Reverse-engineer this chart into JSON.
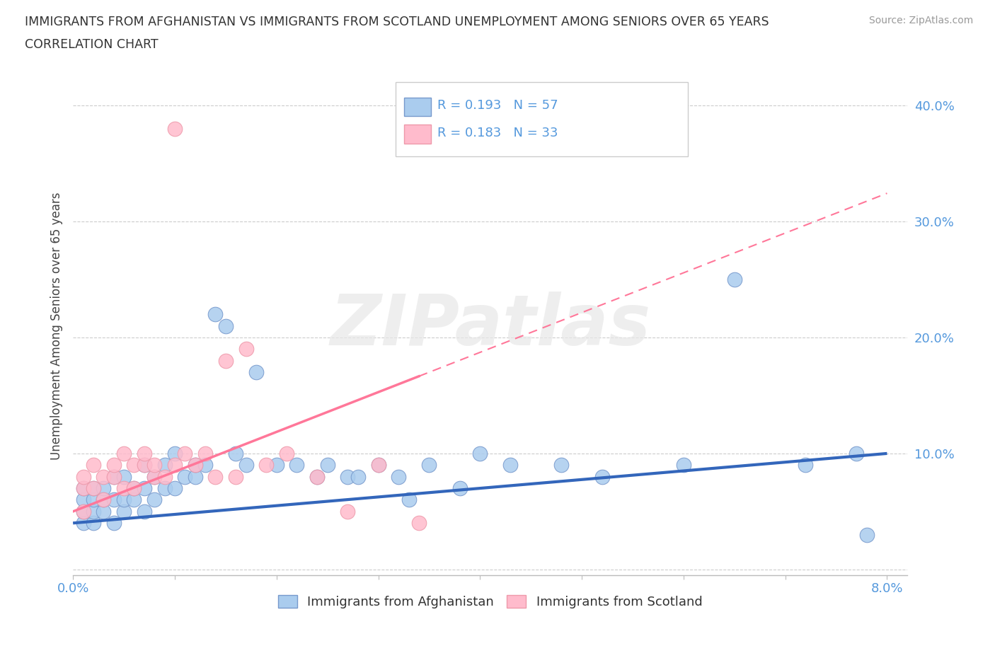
{
  "title_line1": "IMMIGRANTS FROM AFGHANISTAN VS IMMIGRANTS FROM SCOTLAND UNEMPLOYMENT AMONG SENIORS OVER 65 YEARS",
  "title_line2": "CORRELATION CHART",
  "source": "Source: ZipAtlas.com",
  "ylabel": "Unemployment Among Seniors over 65 years",
  "legend_label1": "Immigrants from Afghanistan",
  "legend_label2": "Immigrants from Scotland",
  "color_blue_fill": "#AACCEE",
  "color_blue_edge": "#7799CC",
  "color_pink_fill": "#FFBBCC",
  "color_pink_edge": "#EE99AA",
  "color_blue_line": "#3366BB",
  "color_pink_line": "#FF7799",
  "color_axis_label": "#5599DD",
  "watermark": "ZIPatlas",
  "r_afghanistan": "0.193",
  "n_afghanistan": "57",
  "r_scotland": "0.183",
  "n_scotland": "33",
  "xlim": [
    0.0,
    0.082
  ],
  "ylim": [
    -0.005,
    0.425
  ],
  "ytick_vals": [
    0.0,
    0.1,
    0.2,
    0.3,
    0.4
  ],
  "ytick_labels": [
    "",
    "10.0%",
    "20.0%",
    "30.0%",
    "40.0%"
  ],
  "xtick_vals": [
    0.0,
    0.01,
    0.02,
    0.03,
    0.04,
    0.05,
    0.06,
    0.07,
    0.08
  ],
  "xtick_labels": [
    "0.0%",
    "",
    "",
    "",
    "",
    "",
    "",
    "",
    "8.0%"
  ]
}
